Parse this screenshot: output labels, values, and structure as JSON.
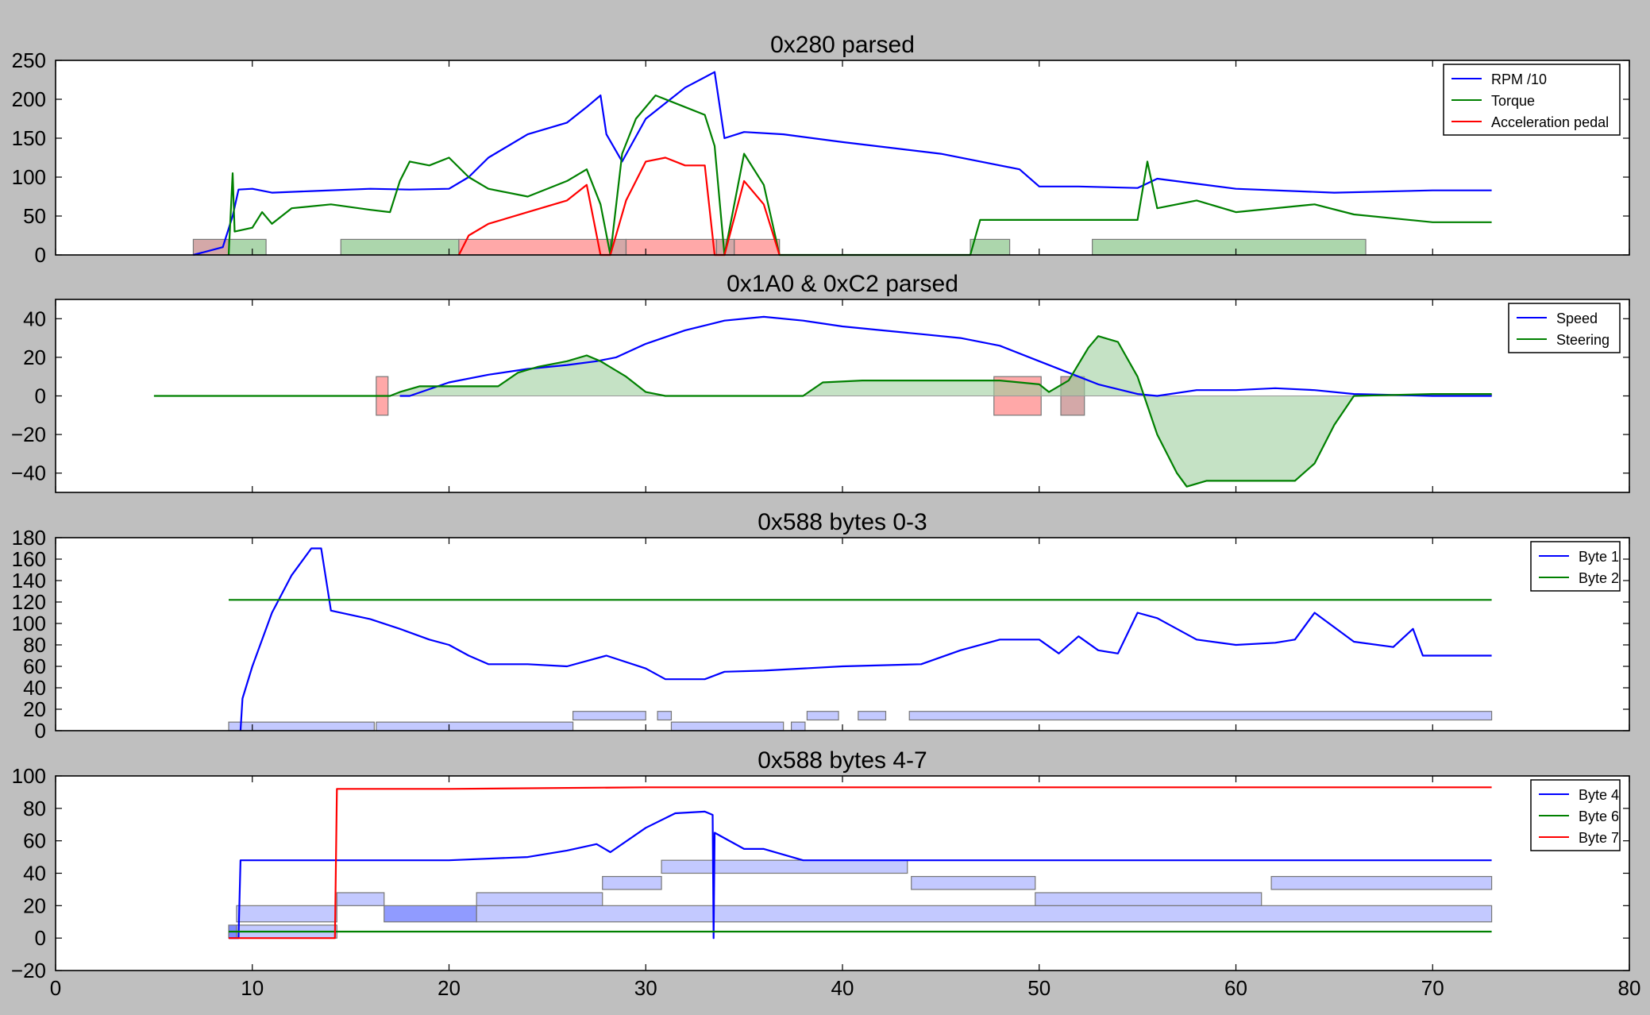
{
  "figure": {
    "background": "#bfbfbf",
    "xlim": [
      0,
      80
    ],
    "xticks": [
      0,
      10,
      20,
      30,
      40,
      50,
      60,
      70,
      80
    ]
  },
  "chart_data": [
    {
      "type": "line",
      "title": "0x280 parsed",
      "ylim": [
        0,
        250
      ],
      "yticks": [
        0,
        50,
        100,
        150,
        200,
        250
      ],
      "legend_position": "top-right",
      "series": [
        {
          "name": "RPM /10",
          "color": "#0000ff",
          "x": [
            7,
            8.5,
            9,
            9.3,
            10,
            11,
            13,
            16,
            18,
            20,
            21,
            22,
            24,
            26,
            27,
            27.7,
            28,
            28.8,
            30,
            32,
            33.5,
            34,
            35,
            37,
            40,
            45,
            49,
            50,
            52,
            55,
            56,
            60,
            65,
            70,
            73
          ],
          "y": [
            0,
            10,
            50,
            84,
            85,
            80,
            82,
            85,
            84,
            85,
            100,
            125,
            155,
            170,
            190,
            205,
            155,
            120,
            175,
            215,
            235,
            150,
            158,
            155,
            145,
            130,
            110,
            88,
            88,
            86,
            98,
            85,
            80,
            83,
            83
          ]
        },
        {
          "name": "Torque",
          "color": "#008000",
          "x": [
            8.8,
            9,
            9.1,
            10,
            10.5,
            11,
            12,
            14,
            16,
            17,
            17.5,
            18,
            19,
            20,
            21,
            22,
            24,
            26,
            27,
            27.7,
            28.2,
            28.8,
            29.5,
            30.5,
            32,
            33,
            33.5,
            34,
            35,
            36,
            36.8,
            37,
            46.5,
            47,
            50,
            55,
            55.5,
            56,
            58,
            60,
            64,
            66,
            70,
            73
          ],
          "y": [
            0,
            105,
            30,
            35,
            55,
            40,
            60,
            65,
            58,
            55,
            95,
            120,
            115,
            125,
            100,
            85,
            75,
            95,
            110,
            65,
            0,
            130,
            175,
            205,
            190,
            180,
            140,
            0,
            130,
            90,
            0,
            0,
            0,
            45,
            45,
            45,
            120,
            60,
            70,
            55,
            65,
            52,
            42,
            42
          ]
        },
        {
          "name": "Acceleration pedal",
          "color": "#ff0000",
          "x": [
            20.5,
            21,
            22,
            24,
            26,
            27,
            27.7,
            28.2,
            29,
            30,
            31,
            32,
            33,
            33.5,
            34,
            35,
            36,
            36.8
          ],
          "y": [
            0,
            25,
            40,
            55,
            70,
            90,
            0,
            0,
            70,
            120,
            125,
            115,
            115,
            0,
            0,
            95,
            65,
            0
          ]
        }
      ],
      "bands": [
        {
          "x0": 7.0,
          "x1": 8.8,
          "y0": 0,
          "y1": 20,
          "color": "#cc9999"
        },
        {
          "x0": 8.8,
          "x1": 10.7,
          "y0": 0,
          "y1": 20,
          "color": "#9ecf9e"
        },
        {
          "x0": 14.5,
          "x1": 20.5,
          "y0": 0,
          "y1": 20,
          "color": "#9ecf9e"
        },
        {
          "x0": 20.5,
          "x1": 28.2,
          "y0": 0,
          "y1": 20,
          "color": "#ff9999"
        },
        {
          "x0": 28.2,
          "x1": 29.0,
          "y0": 0,
          "y1": 20,
          "color": "#cc9999"
        },
        {
          "x0": 29.0,
          "x1": 33.6,
          "y0": 0,
          "y1": 20,
          "color": "#ff9999"
        },
        {
          "x0": 33.6,
          "x1": 34.5,
          "y0": 0,
          "y1": 20,
          "color": "#cc9999"
        },
        {
          "x0": 34.5,
          "x1": 36.8,
          "y0": 0,
          "y1": 20,
          "color": "#ff9999"
        },
        {
          "x0": 46.5,
          "x1": 48.5,
          "y0": 0,
          "y1": 20,
          "color": "#9ecf9e"
        },
        {
          "x0": 52.7,
          "x1": 66.6,
          "y0": 0,
          "y1": 20,
          "color": "#9ecf9e"
        }
      ]
    },
    {
      "type": "line",
      "title": "0x1A0 & 0xC2 parsed",
      "ylim": [
        -50,
        50
      ],
      "yticks": [
        -40,
        -20,
        0,
        20,
        40
      ],
      "legend_position": "top-right",
      "series": [
        {
          "name": "Speed",
          "color": "#0000ff",
          "x": [
            17.5,
            18,
            20,
            22,
            24,
            26,
            27.5,
            28.5,
            30,
            32,
            34,
            36,
            38,
            40,
            42,
            44,
            46,
            48,
            50,
            52,
            53,
            55,
            56,
            58,
            60,
            62,
            64,
            66,
            70,
            73
          ],
          "y": [
            0,
            0,
            7,
            11,
            14,
            16,
            18,
            20,
            27,
            34,
            39,
            41,
            39,
            36,
            34,
            32,
            30,
            26,
            18,
            10,
            6,
            1,
            0,
            3,
            3,
            4,
            3,
            1,
            0,
            0
          ]
        },
        {
          "name": "Steering",
          "color": "#008000",
          "x": [
            5,
            17,
            17.5,
            18.5,
            20,
            22.5,
            23.5,
            24.5,
            26,
            27,
            27.7,
            29,
            30,
            31,
            32,
            34,
            36,
            38,
            39,
            41,
            43,
            46,
            48,
            50,
            50.5,
            51.5,
            52.5,
            53,
            54,
            55,
            56,
            57,
            57.5,
            58.5,
            60,
            62,
            63,
            64,
            65,
            66,
            70,
            73
          ],
          "y": [
            0,
            0,
            2,
            5,
            5,
            5,
            12,
            15,
            18,
            21,
            18,
            10,
            2,
            0,
            0,
            0,
            0,
            0,
            7,
            8,
            8,
            8,
            8,
            6,
            2,
            8,
            25,
            31,
            28,
            10,
            -20,
            -40,
            -47,
            -44,
            -44,
            -44,
            -44,
            -35,
            -15,
            0,
            1,
            1
          ]
        }
      ],
      "bands": [
        {
          "x0": 16.3,
          "x1": 16.9,
          "y0": -10,
          "y1": 10,
          "color": "#ff9999"
        },
        {
          "x0": 47.7,
          "x1": 50.1,
          "y0": -10,
          "y1": 10,
          "color": "#ff9999"
        },
        {
          "x0": 51.1,
          "x1": 52.3,
          "y0": -10,
          "y1": 10,
          "color": "#cc9999"
        }
      ]
    },
    {
      "type": "line",
      "title": "0x588 bytes 0-3",
      "ylim": [
        0,
        180
      ],
      "yticks": [
        0,
        20,
        40,
        60,
        80,
        100,
        120,
        140,
        160,
        180
      ],
      "legend_position": "top-right",
      "series": [
        {
          "name": "Byte 1",
          "color": "#0000ff",
          "x": [
            9.4,
            9.5,
            10,
            11,
            12,
            13,
            13.5,
            14,
            16,
            17.5,
            19,
            20,
            21,
            22,
            24,
            26,
            28,
            30,
            31,
            33,
            34,
            36,
            40,
            44,
            46,
            48,
            50,
            51,
            52,
            53,
            54,
            55,
            56,
            57,
            58,
            60,
            62,
            63,
            64,
            66,
            68,
            69,
            69.5,
            73
          ],
          "y": [
            0,
            30,
            60,
            110,
            145,
            170,
            170,
            112,
            104,
            95,
            85,
            80,
            70,
            62,
            62,
            60,
            70,
            58,
            48,
            48,
            55,
            56,
            60,
            62,
            75,
            85,
            85,
            72,
            88,
            75,
            72,
            110,
            105,
            95,
            85,
            80,
            82,
            85,
            110,
            83,
            78,
            95,
            70,
            70
          ]
        },
        {
          "name": "Byte 2",
          "color": "#008000",
          "x": [
            8.8,
            73
          ],
          "y": [
            122,
            122
          ]
        }
      ],
      "bands": [
        {
          "x0": 8.8,
          "x1": 16.2,
          "y0": 0,
          "y1": 8,
          "color": "#b8bfff"
        },
        {
          "x0": 16.3,
          "x1": 26.3,
          "y0": 0,
          "y1": 8,
          "color": "#b8bfff"
        },
        {
          "x0": 26.3,
          "x1": 30.0,
          "y0": 10,
          "y1": 18,
          "color": "#b8bfff"
        },
        {
          "x0": 30.6,
          "x1": 31.3,
          "y0": 10,
          "y1": 18,
          "color": "#b8bfff"
        },
        {
          "x0": 31.3,
          "x1": 37.0,
          "y0": 0,
          "y1": 8,
          "color": "#b8bfff"
        },
        {
          "x0": 37.4,
          "x1": 38.1,
          "y0": 0,
          "y1": 8,
          "color": "#b8bfff"
        },
        {
          "x0": 38.2,
          "x1": 39.8,
          "y0": 10,
          "y1": 18,
          "color": "#b8bfff"
        },
        {
          "x0": 40.8,
          "x1": 42.2,
          "y0": 10,
          "y1": 18,
          "color": "#b8bfff"
        },
        {
          "x0": 43.4,
          "x1": 73.0,
          "y0": 10,
          "y1": 18,
          "color": "#b8bfff"
        }
      ]
    },
    {
      "type": "line",
      "title": "0x588 bytes 4-7",
      "ylim": [
        -20,
        100
      ],
      "yticks": [
        -20,
        0,
        20,
        40,
        60,
        80,
        100
      ],
      "legend_position": "top-right",
      "series": [
        {
          "name": "Byte 4",
          "color": "#0000ff",
          "x": [
            8.8,
            9.3,
            9.4,
            20,
            24,
            26,
            27.5,
            28.2,
            30,
            31.5,
            33,
            33.4,
            33.45,
            33.5,
            35,
            36,
            38,
            42,
            73
          ],
          "y": [
            0,
            0,
            48,
            48,
            50,
            54,
            58,
            53,
            68,
            77,
            78,
            76,
            0,
            65,
            55,
            55,
            48,
            48,
            48
          ]
        },
        {
          "name": "Byte 6",
          "color": "#008000",
          "x": [
            8.8,
            73
          ],
          "y": [
            4,
            4
          ]
        },
        {
          "name": "Byte 7",
          "color": "#ff0000",
          "x": [
            8.8,
            14.2,
            14.3,
            20,
            30,
            50,
            62,
            73
          ],
          "y": [
            0,
            0,
            92,
            92,
            93,
            93,
            93,
            93
          ]
        }
      ],
      "bands": [
        {
          "x0": 8.8,
          "x1": 9.2,
          "y0": 0,
          "y1": 8,
          "color": "#6674ff"
        },
        {
          "x0": 9.2,
          "x1": 14.3,
          "y0": 10,
          "y1": 20,
          "color": "#b8bfff"
        },
        {
          "x0": 9.2,
          "x1": 14.3,
          "y0": 0,
          "y1": 8,
          "color": "#b8bfff"
        },
        {
          "x0": 14.3,
          "x1": 16.7,
          "y0": 20,
          "y1": 28,
          "color": "#b8bfff"
        },
        {
          "x0": 16.7,
          "x1": 21.4,
          "y0": 10,
          "y1": 20,
          "color": "#7c89ff"
        },
        {
          "x0": 21.4,
          "x1": 73.0,
          "y0": 10,
          "y1": 20,
          "color": "#b8bfff"
        },
        {
          "x0": 21.4,
          "x1": 27.8,
          "y0": 20,
          "y1": 28,
          "color": "#b8bfff"
        },
        {
          "x0": 27.8,
          "x1": 30.8,
          "y0": 30,
          "y1": 38,
          "color": "#b8bfff"
        },
        {
          "x0": 30.8,
          "x1": 43.3,
          "y0": 40,
          "y1": 48,
          "color": "#b8bfff"
        },
        {
          "x0": 43.5,
          "x1": 49.8,
          "y0": 30,
          "y1": 38,
          "color": "#b8bfff"
        },
        {
          "x0": 49.8,
          "x1": 61.3,
          "y0": 20,
          "y1": 28,
          "color": "#b8bfff"
        },
        {
          "x0": 61.8,
          "x1": 73.0,
          "y0": 30,
          "y1": 38,
          "color": "#b8bfff"
        }
      ]
    }
  ]
}
